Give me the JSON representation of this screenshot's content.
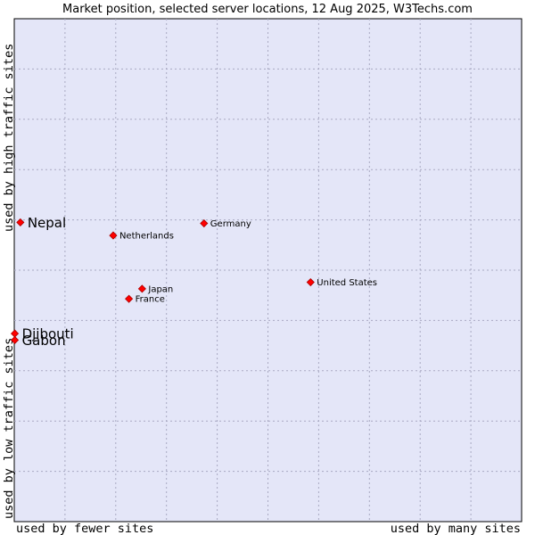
{
  "chart_data": {
    "type": "scatter",
    "title": "Market position, selected server locations, 12 Aug 2025, W3Techs.com",
    "xlabel_left": "used by fewer sites",
    "xlabel_right": "used by many sites",
    "ylabel_bottom": "used by low traffic sites",
    "ylabel_top": "used by high traffic sites",
    "xlim": [
      0,
      100
    ],
    "ylim": [
      0,
      100
    ],
    "grid": true,
    "colors": {
      "plot_background": "#e4e6f8",
      "grid": "#a9a9c2",
      "marker": "#ff0000",
      "marker_edge": "#aa0000"
    },
    "points": [
      {
        "label": "Nepal",
        "x": 1.2,
        "y": 59.5,
        "emphasis": true
      },
      {
        "label": "Netherlands",
        "x": 19.5,
        "y": 56.9,
        "emphasis": false
      },
      {
        "label": "Germany",
        "x": 37.4,
        "y": 59.3,
        "emphasis": false
      },
      {
        "label": "United States",
        "x": 58.4,
        "y": 47.6,
        "emphasis": false
      },
      {
        "label": "Japan",
        "x": 25.2,
        "y": 46.3,
        "emphasis": false
      },
      {
        "label": "France",
        "x": 22.6,
        "y": 44.3,
        "emphasis": false
      },
      {
        "label": "Djibouti",
        "x": 0.1,
        "y": 37.4,
        "emphasis": true
      },
      {
        "label": "Gabon",
        "x": 0.1,
        "y": 36.1,
        "emphasis": true
      }
    ]
  }
}
